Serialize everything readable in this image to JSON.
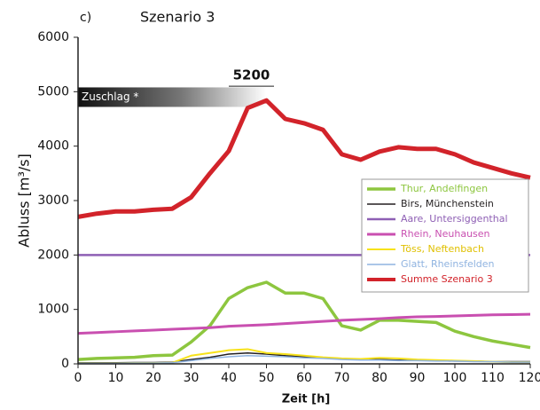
{
  "chart_data": {
    "type": "line",
    "panel": "c)",
    "title": "Szenario 3",
    "x_label": "Zeit [h]",
    "y_label": "Abluss [m³/s]",
    "x": [
      0,
      5,
      10,
      15,
      20,
      25,
      30,
      35,
      40,
      45,
      50,
      55,
      60,
      65,
      70,
      75,
      80,
      85,
      90,
      95,
      100,
      105,
      110,
      115,
      120
    ],
    "series": [
      {
        "name": "Thur, Andelfingen",
        "color": "#8dc63f",
        "width": 3.5,
        "values": [
          80,
          100,
          110,
          120,
          150,
          160,
          400,
          700,
          1200,
          1400,
          1500,
          1300,
          1300,
          1200,
          700,
          620,
          800,
          800,
          780,
          760,
          600,
          500,
          420,
          360,
          300
        ]
      },
      {
        "name": "Birs,  Münchenstein",
        "color": "#231f20",
        "width": 1.5,
        "values": [
          20,
          20,
          20,
          25,
          25,
          30,
          80,
          120,
          180,
          200,
          180,
          150,
          130,
          110,
          90,
          80,
          80,
          70,
          70,
          60,
          50,
          50,
          40,
          40,
          40
        ]
      },
      {
        "name": "Aare, Untersiggenthal",
        "color": "#8e5fb4",
        "width": 2.5,
        "values": [
          2000,
          2000,
          2000,
          2000,
          2000,
          2000,
          2000,
          2000,
          2000,
          2000,
          2000,
          2000,
          2000,
          2000,
          2000,
          2000,
          2000,
          2000,
          2000,
          2000,
          2000,
          2000,
          2000,
          2000,
          2000
        ]
      },
      {
        "name": "Rhein, Neuhausen",
        "color": "#c94fb0",
        "width": 3,
        "values": [
          560,
          575,
          590,
          605,
          620,
          635,
          650,
          665,
          690,
          705,
          720,
          740,
          760,
          780,
          800,
          815,
          830,
          850,
          865,
          870,
          880,
          890,
          900,
          905,
          910
        ]
      },
      {
        "name": "Töss, Neftenbach",
        "color": "#f7e21a",
        "width": 2,
        "values": [
          10,
          10,
          10,
          15,
          15,
          20,
          150,
          200,
          250,
          270,
          200,
          180,
          150,
          120,
          100,
          90,
          110,
          100,
          80,
          70,
          60,
          50,
          40,
          30,
          30
        ]
      },
      {
        "name": "Glatt, Rheinsfelden",
        "color": "#8fb3e0",
        "width": 1.5,
        "values": [
          10,
          10,
          10,
          15,
          15,
          20,
          60,
          100,
          130,
          150,
          140,
          130,
          110,
          100,
          80,
          70,
          70,
          60,
          60,
          50,
          50,
          40,
          40,
          30,
          30
        ]
      },
      {
        "name": "Summe Szenario 3",
        "color": "#d2232a",
        "width": 5,
        "values": [
          2700,
          2760,
          2800,
          2800,
          2830,
          2850,
          3060,
          3500,
          3910,
          4700,
          4840,
          4500,
          4420,
          4300,
          3850,
          3750,
          3900,
          3980,
          3950,
          3950,
          3850,
          3700,
          3600,
          3500,
          3420
        ]
      }
    ],
    "xlim": [
      0,
      120
    ],
    "ylim": [
      0,
      6000
    ],
    "xticks": [
      0,
      10,
      20,
      30,
      40,
      50,
      60,
      70,
      80,
      90,
      100,
      110,
      120
    ],
    "yticks": [
      0,
      1000,
      2000,
      3000,
      4000,
      5000,
      6000
    ],
    "grid": false,
    "legend": "right",
    "annotations": [
      "Zuschlag *",
      "5200"
    ]
  }
}
